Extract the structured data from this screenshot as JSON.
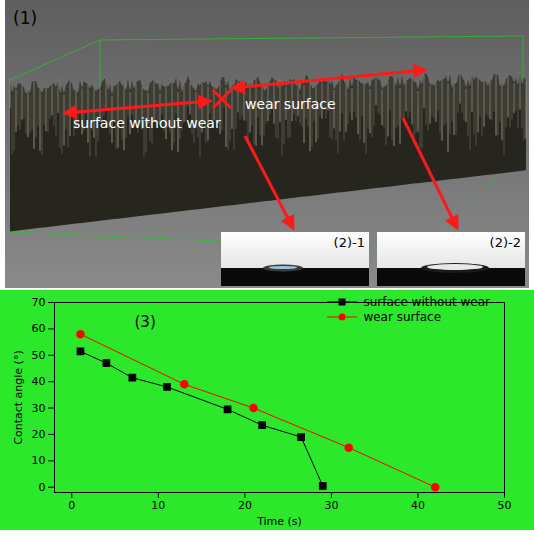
{
  "figure": {
    "image_labels": {
      "surface": "(1)",
      "droplet_left": "(2)-1",
      "droplet_right": "(2)-2"
    },
    "annotations": {
      "left": "surface without wear",
      "right": "wear surface"
    },
    "chart_label": "(3)"
  },
  "chart_data": {
    "type": "line",
    "x_label": "Time (s)",
    "y_label": "Contact angle (°)",
    "xlim": [
      -2,
      50
    ],
    "ylim": [
      -2,
      70
    ],
    "xticks": [
      0,
      10,
      20,
      30,
      40,
      50
    ],
    "yticks": [
      0,
      10,
      20,
      30,
      40,
      50,
      60,
      70
    ],
    "grid": false,
    "legend": "upper right",
    "series": [
      {
        "name": "surface without wear",
        "color": "#000000",
        "marker": "square",
        "x": [
          1,
          4,
          7,
          11,
          18,
          22,
          26.5,
          29
        ],
        "values": [
          51.5,
          47,
          41.5,
          38,
          29.5,
          23.5,
          19,
          0.5
        ]
      },
      {
        "name": "wear surface",
        "color": "#ff0000",
        "marker": "circle",
        "x": [
          1,
          13,
          21,
          32,
          42
        ],
        "values": [
          58,
          39,
          30,
          15,
          0
        ]
      }
    ]
  }
}
